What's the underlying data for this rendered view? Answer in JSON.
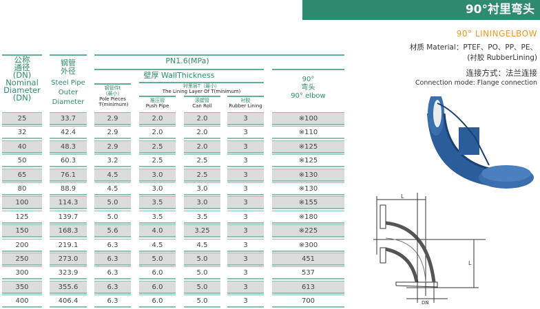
{
  "title": "90°衬里弯头",
  "subtitle": "90°  LININGELBOW",
  "material_line1": "材质 Material：PTEF、PO、PP、PE、",
  "material_line2": "(衬胶 RubberLining)",
  "connection_cn": "连接方式：法兰连接",
  "connection_en": "Connection mode: Flange connection",
  "headers": {
    "dn_cn": "公称通径",
    "dn_abbr": "(DN)",
    "dn_en": "Nominal Diameter",
    "dn_abbr2": "(DN)",
    "od_cn": "钢管外径",
    "od_en": "Steel Pipe Outer Diameter",
    "pressure": "PN1.6(MPa)",
    "wall": "壁厚 WallThickness",
    "pole_cn": "钢管件t（最小）",
    "pole_en": "Pole Pieces T(minimum)",
    "lining_cn": "衬里层T（最小）",
    "lining_en": "The Lining Layer Of T(minimum)",
    "push_cn": "推压管",
    "push_en": "Push Pipe",
    "roll_cn": "滚塑管",
    "roll_en": "Can Roll",
    "rubber_cn": "衬胶",
    "rubber_en": "Rubber Lining",
    "elbow_deg": "90°",
    "elbow_cn": "弯头",
    "elbow_en": "90° elbow"
  },
  "rows": [
    [
      "25",
      "33.7",
      "2.9",
      "2.0",
      "2.0",
      "3",
      "※100"
    ],
    [
      "32",
      "42.4",
      "2.9",
      "2.0",
      "2.0",
      "3",
      "※110"
    ],
    [
      "40",
      "48.3",
      "2.9",
      "2.5",
      "2.0",
      "3",
      "※125"
    ],
    [
      "50",
      "60.3",
      "3.2",
      "2.5",
      "2.5",
      "3",
      "※125"
    ],
    [
      "65",
      "76.1",
      "4.5",
      "3.0",
      "2.5",
      "3",
      "※130"
    ],
    [
      "80",
      "88.9",
      "4.5",
      "3.0",
      "3.0",
      "3",
      "※130"
    ],
    [
      "100",
      "114.3",
      "5.0",
      "3.5",
      "3.0",
      "3",
      "※155"
    ],
    [
      "125",
      "139.7",
      "5.0",
      "3.5",
      "3.5",
      "3",
      "※180"
    ],
    [
      "150",
      "168.3",
      "5.6",
      "4.0",
      "3.25",
      "3",
      "※225"
    ],
    [
      "200",
      "219.1",
      "6.3",
      "4.5",
      "4.5",
      "3",
      "※300"
    ],
    [
      "250",
      "273.0",
      "6.3",
      "5.0",
      "5.0",
      "3",
      "451"
    ],
    [
      "300",
      "323.9",
      "6.3",
      "6.0",
      "5.0",
      "3",
      "537"
    ],
    [
      "350",
      "355.6",
      "6.3",
      "6.0",
      "5.0",
      "3",
      "613"
    ],
    [
      "400",
      "406.4",
      "6.3",
      "6.0",
      "5.0",
      "3",
      "700"
    ]
  ],
  "diagram": {
    "label_l": "L",
    "label_l2": "L",
    "label_dn": "DN"
  },
  "colors": {
    "accent": "#2e8b6e",
    "orange": "#e89a2a",
    "pipe": "#2b5d9a"
  }
}
